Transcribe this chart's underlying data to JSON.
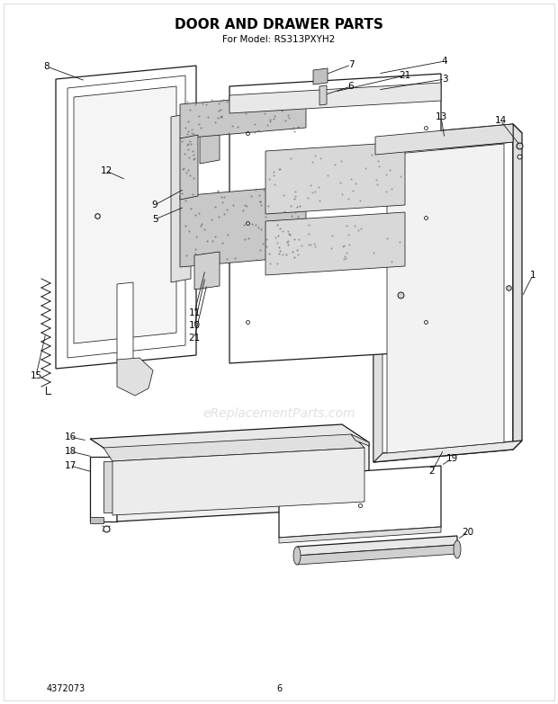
{
  "title": "DOOR AND DRAWER PARTS",
  "subtitle": "For Model: RS313PXYH2",
  "part_number": "4372073",
  "page": "6",
  "bg_color": "#ffffff",
  "title_fontsize": 11,
  "subtitle_fontsize": 7.5,
  "watermark": "eReplacementParts.com",
  "line_color": "#1a1a1a",
  "fill_white": "#ffffff",
  "fill_light": "#f0f0f0",
  "fill_gray": "#d0d0d0",
  "fill_texture": "#c8c8c8"
}
